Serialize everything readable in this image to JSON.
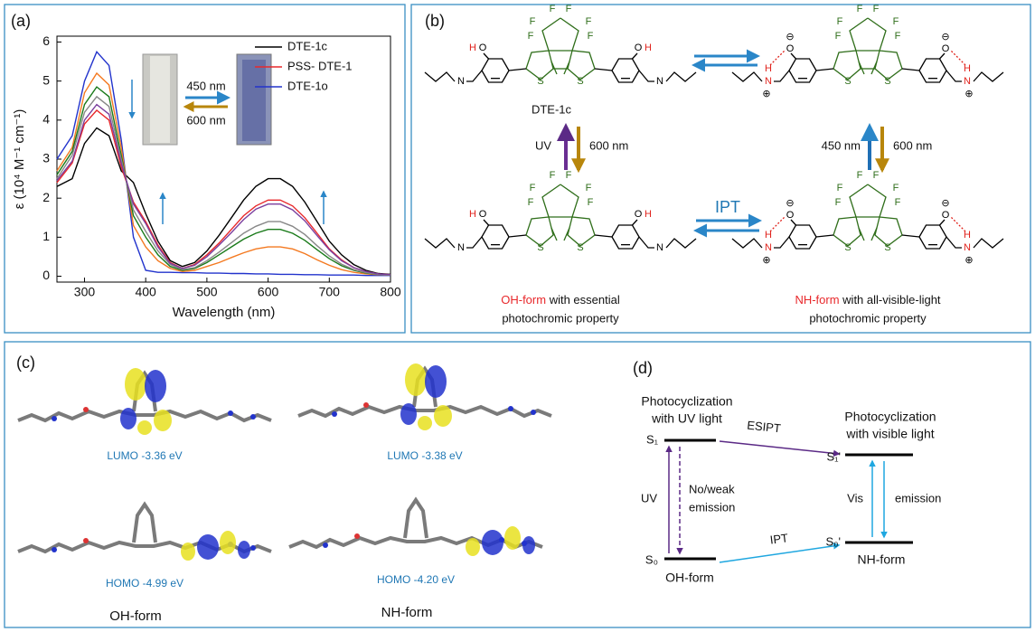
{
  "panel_labels": [
    "(a)",
    "(b)",
    "(c)",
    "(d)"
  ],
  "chart_data": {
    "type": "line",
    "x_label": "Wavelength (nm)",
    "y_label": "ε (10⁴ M⁻¹ cm⁻¹)",
    "x": [
      255,
      280,
      300,
      320,
      340,
      360,
      380,
      400,
      420,
      440,
      460,
      480,
      500,
      520,
      540,
      560,
      580,
      600,
      620,
      640,
      660,
      680,
      700,
      720,
      740,
      760,
      780,
      800
    ],
    "series": [
      {
        "name": "DTE-1c",
        "color": "#000000",
        "values": [
          2.3,
          2.5,
          3.4,
          3.8,
          3.6,
          2.7,
          2.4,
          1.6,
          0.9,
          0.4,
          0.25,
          0.35,
          0.65,
          1.05,
          1.5,
          1.95,
          2.3,
          2.5,
          2.5,
          2.3,
          1.9,
          1.4,
          0.9,
          0.55,
          0.3,
          0.15,
          0.07,
          0.05
        ]
      },
      {
        "name": "PSS- DTE-1",
        "color": "#e8282b",
        "values": [
          2.4,
          2.9,
          3.9,
          4.25,
          4.0,
          2.8,
          1.9,
          1.4,
          0.8,
          0.35,
          0.2,
          0.3,
          0.55,
          0.85,
          1.2,
          1.55,
          1.8,
          1.95,
          1.95,
          1.8,
          1.5,
          1.1,
          0.7,
          0.42,
          0.22,
          0.12,
          0.06,
          0.04
        ]
      },
      {
        "name": "DTE-1o",
        "color": "#2233cc",
        "values": [
          3.0,
          3.6,
          5.0,
          5.75,
          5.4,
          3.5,
          1.0,
          0.15,
          0.1,
          0.1,
          0.09,
          0.09,
          0.08,
          0.08,
          0.07,
          0.07,
          0.06,
          0.06,
          0.05,
          0.05,
          0.04,
          0.04,
          0.03,
          0.03,
          0.03,
          0.02,
          0.02,
          0.02
        ]
      },
      {
        "color": "#f47920",
        "values": [
          2.7,
          3.3,
          4.7,
          5.2,
          4.9,
          3.3,
          1.3,
          0.75,
          0.4,
          0.2,
          0.12,
          0.15,
          0.25,
          0.35,
          0.48,
          0.6,
          0.7,
          0.75,
          0.75,
          0.7,
          0.58,
          0.42,
          0.28,
          0.17,
          0.1,
          0.06,
          0.04,
          0.03
        ]
      },
      {
        "color": "#1a7a1a",
        "values": [
          2.6,
          3.2,
          4.4,
          4.85,
          4.6,
          3.1,
          1.55,
          1.0,
          0.55,
          0.25,
          0.15,
          0.2,
          0.35,
          0.55,
          0.75,
          0.95,
          1.1,
          1.2,
          1.2,
          1.1,
          0.92,
          0.68,
          0.45,
          0.27,
          0.15,
          0.08,
          0.05,
          0.03
        ]
      },
      {
        "color": "#888888",
        "values": [
          2.5,
          3.1,
          4.2,
          4.6,
          4.35,
          3.0,
          1.7,
          1.15,
          0.65,
          0.3,
          0.17,
          0.22,
          0.4,
          0.62,
          0.86,
          1.1,
          1.28,
          1.4,
          1.4,
          1.28,
          1.07,
          0.78,
          0.52,
          0.31,
          0.17,
          0.09,
          0.05,
          0.03
        ]
      },
      {
        "color": "#7b3f9e",
        "values": [
          2.45,
          2.95,
          4.0,
          4.4,
          4.15,
          2.9,
          1.85,
          1.35,
          0.75,
          0.33,
          0.2,
          0.28,
          0.5,
          0.8,
          1.12,
          1.45,
          1.72,
          1.85,
          1.85,
          1.7,
          1.42,
          1.04,
          0.68,
          0.4,
          0.22,
          0.12,
          0.06,
          0.04
        ]
      }
    ],
    "xlim": [
      255,
      800
    ],
    "xticks": [
      300,
      400,
      500,
      600,
      700,
      800
    ],
    "ylim": [
      -0.15,
      6.15
    ],
    "yticks": [
      0,
      1,
      2,
      3,
      4,
      5,
      6
    ],
    "legend": "top-right",
    "annotations": [
      "450 nm",
      "600 nm"
    ]
  },
  "panel_b": {
    "structures": [
      {
        "atoms": [
          "F",
          "F",
          "F",
          "F",
          "F",
          "F",
          "S",
          "S",
          "H",
          "O",
          "N",
          "O",
          "H",
          "N"
        ]
      },
      {
        "atoms": [
          "F",
          "F",
          "F",
          "F",
          "F",
          "F",
          "S",
          "S",
          "⊖",
          "O",
          "H",
          "N",
          "⊕",
          "⊖",
          "O",
          "H",
          "N",
          "⊕"
        ]
      },
      {
        "atoms": [
          "F",
          "F",
          "F",
          "F",
          "F",
          "F",
          "S",
          "S",
          "H",
          "O",
          "N",
          "O",
          "H",
          "N"
        ]
      },
      {
        "atoms": [
          "F",
          "F",
          "F",
          "F",
          "F",
          "F",
          "S",
          "S",
          "⊖",
          "O",
          "H",
          "N",
          "⊕",
          "⊖",
          "O",
          "H",
          "N",
          "⊕"
        ]
      }
    ],
    "compound_label": "DTE-1c",
    "uv": "UV",
    "left_vis": "600 nm",
    "right_uv": "450 nm",
    "right_vis": "600 nm",
    "ipt": "IPT",
    "captions": [
      {
        "form": "OH-form",
        "text": "with essential",
        "line2": "photochromic property"
      },
      {
        "form": "NH-form",
        "text": "with all-visible-light",
        "line2": "photochromic property"
      }
    ]
  },
  "panel_c": {
    "orbitals": [
      "LUMO  -3.36 eV",
      "LUMO  -3.38 eV",
      "HOMO  -4.99 eV",
      "HOMO  -4.20 eV"
    ],
    "forms": [
      "OH-form",
      "NH-form"
    ]
  },
  "panel_d": {
    "left_title": [
      "Photocyclization",
      "with UV light"
    ],
    "right_title": [
      "Photocyclization",
      "with visible light"
    ],
    "s1": "S₁",
    "s0": "S₀",
    "s1p": "S₁'",
    "s0p": "S₀'",
    "esipt": "ESIPT",
    "uv": "UV",
    "no_emission": [
      "No/weak",
      "emission"
    ],
    "vis": "Vis",
    "emission": "emission",
    "ipt": "IPT",
    "oh_form": "OH-form",
    "nh_form": "NH-form"
  }
}
